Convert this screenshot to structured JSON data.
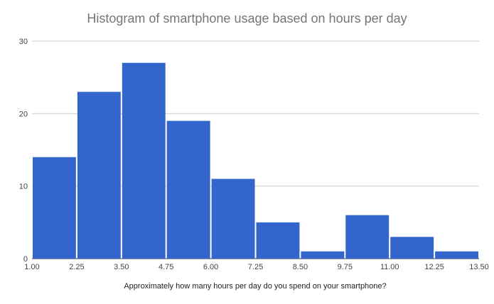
{
  "chart_data": {
    "type": "bar",
    "title": "Histogram of smartphone usage based on hours per day",
    "xlabel": "Approximately how many hours per day do you spend on your smartphone?",
    "ylabel": "",
    "bin_edges": [
      1.0,
      2.25,
      3.5,
      4.75,
      6.0,
      7.25,
      8.5,
      9.75,
      11.0,
      12.25,
      13.5
    ],
    "x_tick_labels": [
      "1.00",
      "2.25",
      "3.50",
      "4.75",
      "6.00",
      "7.25",
      "8.50",
      "9.75",
      "11.00",
      "12.25",
      "13.50"
    ],
    "values": [
      14,
      23,
      27,
      19,
      11,
      5,
      1,
      6,
      3,
      1
    ],
    "y_ticks": [
      0,
      10,
      20,
      30
    ],
    "ylim": [
      0,
      30
    ],
    "xlim": [
      1.0,
      13.5
    ],
    "grid": true,
    "legend": "none",
    "colors": {
      "bar": "#3366cc",
      "grid": "#cccccc",
      "tick_text": "#444444"
    }
  }
}
